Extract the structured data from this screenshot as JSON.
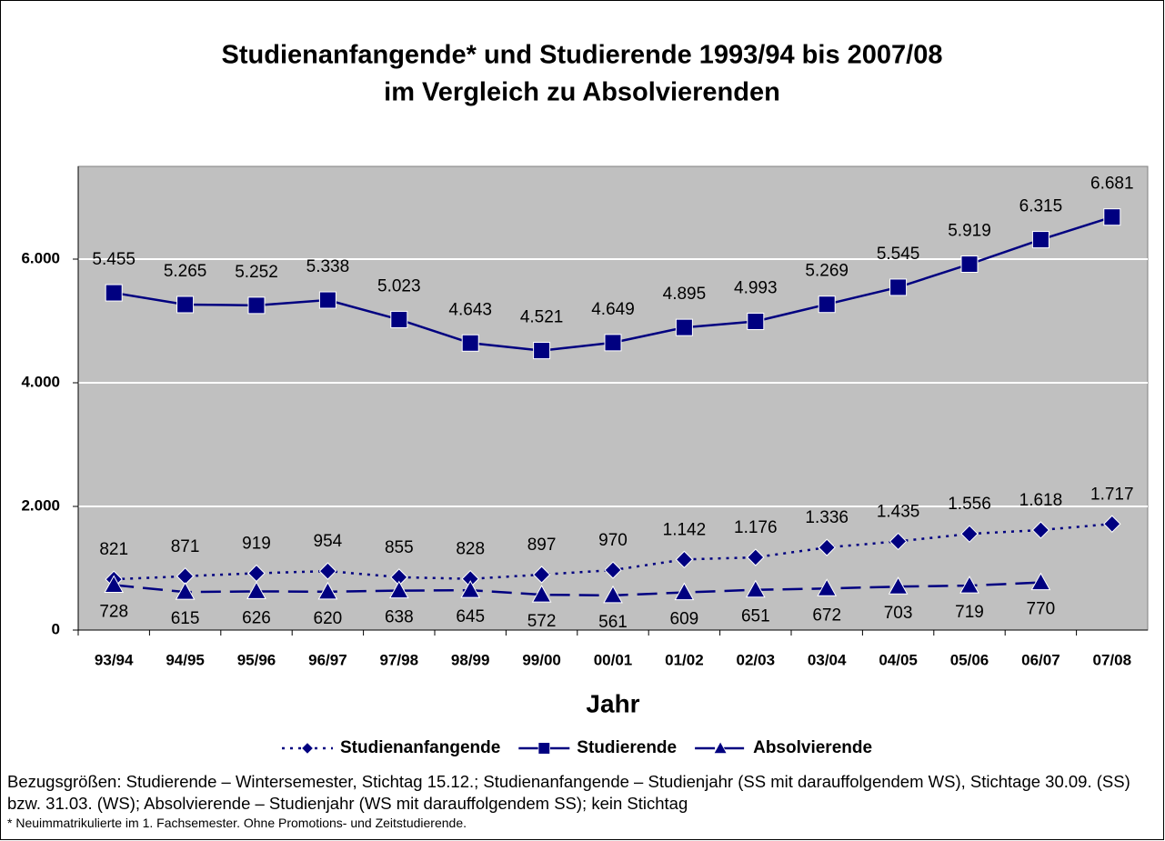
{
  "chart_data": {
    "type": "line",
    "title": [
      "Studienanfangende* und Studierende 1993/94 bis 2007/08",
      "im Vergleich zu Absolvierenden"
    ],
    "x_label": "Jahr",
    "categories": [
      "93/94",
      "94/95",
      "95/96",
      "96/97",
      "97/98",
      "98/99",
      "99/00",
      "00/01",
      "01/02",
      "02/03",
      "03/04",
      "04/05",
      "05/06",
      "06/07",
      "07/08"
    ],
    "series": [
      {
        "name": "Studienanfangende",
        "color": "#000080",
        "line_style": "dotted",
        "marker": "diamond",
        "values": [
          821,
          871,
          919,
          954,
          855,
          828,
          897,
          970,
          1142,
          1176,
          1336,
          1435,
          1556,
          1618,
          1717
        ],
        "value_labels": [
          "821",
          "871",
          "919",
          "954",
          "855",
          "828",
          "897",
          "970",
          "1.142",
          "1.176",
          "1.336",
          "1.435",
          "1.556",
          "1.618",
          "1.717"
        ]
      },
      {
        "name": "Studierende",
        "color": "#000080",
        "line_style": "solid",
        "marker": "square",
        "values": [
          5455,
          5265,
          5252,
          5338,
          5023,
          4643,
          4521,
          4649,
          4895,
          4993,
          5269,
          5545,
          5919,
          6315,
          6681
        ],
        "value_labels": [
          "5.455",
          "5.265",
          "5.252",
          "5.338",
          "5.023",
          "4.643",
          "4.521",
          "4.649",
          "4.895",
          "4.993",
          "5.269",
          "5.545",
          "5.919",
          "6.315",
          "6.681"
        ]
      },
      {
        "name": "Absolvierende",
        "color": "#000080",
        "line_style": "dashed",
        "marker": "triangle",
        "values": [
          728,
          615,
          626,
          620,
          638,
          645,
          572,
          561,
          609,
          651,
          672,
          703,
          719,
          770,
          null
        ],
        "value_labels": [
          "728",
          "615",
          "626",
          "620",
          "638",
          "645",
          "572",
          "561",
          "609",
          "651",
          "672",
          "703",
          "719",
          "770",
          null
        ]
      }
    ],
    "ylim": [
      0,
      7500
    ],
    "yticks": [
      0,
      {
        "value": 2000,
        "label": "2.000"
      },
      {
        "value": 4000,
        "label": "4.000"
      },
      {
        "value": 6000,
        "label": "6.000"
      }
    ],
    "grid": true,
    "legend": "bottom",
    "notes": [
      "Bezugsgrößen: Studierende – Wintersemester, Stichtag 15.12.; Studienanfangende – Studienjahr (SS mit darauffolgendem WS), Stichtage 30.09. (SS) bzw. 31.03. (WS); Absolvierende – Studienjahr (WS mit darauffolgendem SS); kein Stichtag",
      "* Neuimmatrikulierte im 1. Fachsemester. Ohne Promotions- und Zeitstudierende."
    ]
  }
}
